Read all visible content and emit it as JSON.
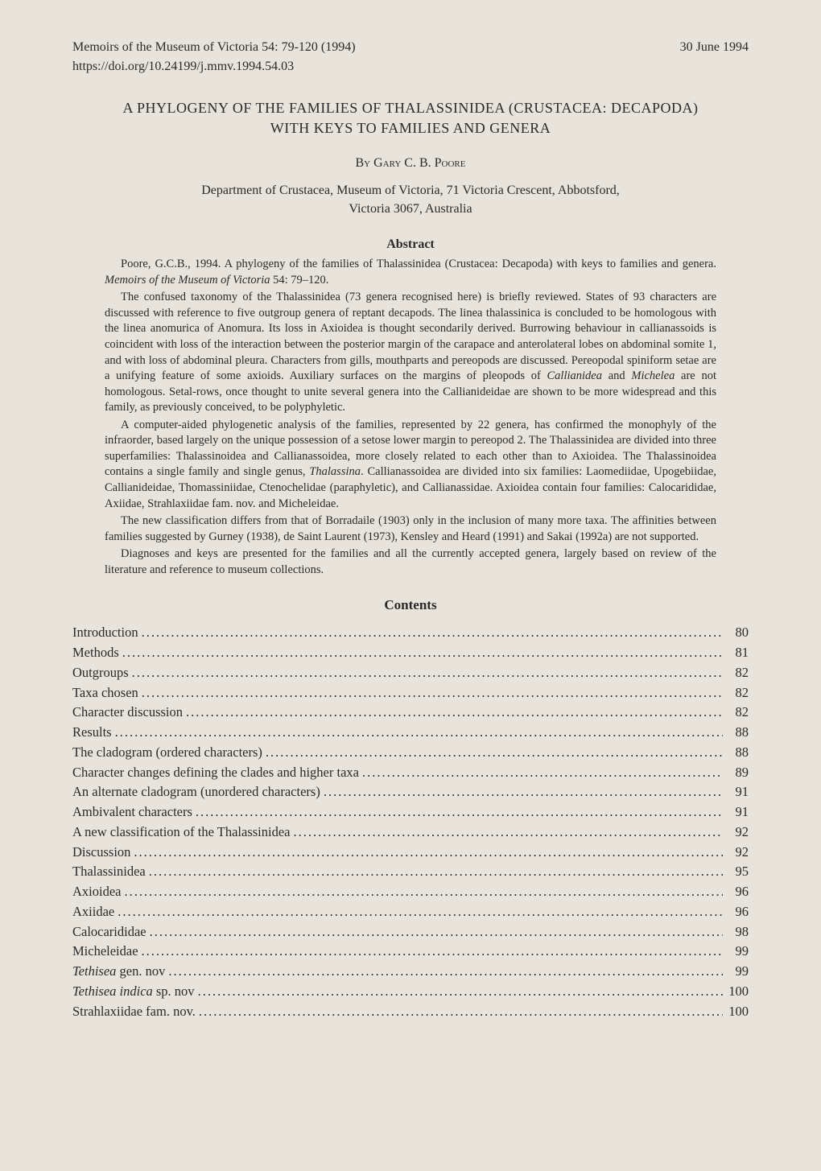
{
  "header": {
    "citation": "Memoirs of the Museum of Victoria 54: 79-120 (1994)",
    "date": "30 June 1994",
    "doi": "https://doi.org/10.24199/j.mmv.1994.54.03"
  },
  "title_line1": "A PHYLOGENY OF THE FAMILIES OF THALASSINIDEA (CRUSTACEA: DECAPODA)",
  "title_line2": "WITH KEYS TO FAMILIES AND GENERA",
  "author_prefix": "By ",
  "author_name": "Gary C. B. Poore",
  "affiliation_line1": "Department of Crustacea, Museum of Victoria, 71 Victoria Crescent, Abbotsford,",
  "affiliation_line2": "Victoria 3067, Australia",
  "abstract_heading": "Abstract",
  "abstract": {
    "p1_a": "Poore, G.C.B., 1994. A phylogeny of the families of Thalassinidea (Crustacea: Decapoda) with keys to families and genera. ",
    "p1_b_italic": "Memoirs of the Museum of Victoria",
    "p1_c": " 54: 79–120.",
    "p2_a": "The confused taxonomy of the Thalassinidea (73 genera recognised here) is briefly reviewed. States of 93 characters are discussed with reference to five outgroup genera of reptant decapods. The linea thalassinica is concluded to be homologous with the linea anomurica of Anomura. Its loss in Axioidea is thought secondarily derived. Burrowing behaviour in callianassoids is coincident with loss of the interaction between the posterior margin of the carapace and anterolateral lobes on abdominal somite 1, and with loss of abdominal pleura. Characters from gills, mouthparts and pereopods are discussed. Pereopodal spiniform setae are a unifying feature of some axioids. Auxiliary surfaces on the margins of pleopods of ",
    "p2_b_italic": "Callianidea",
    "p2_c": " and ",
    "p2_d_italic": "Michelea",
    "p2_e": " are not homologous. Setal-rows, once thought to unite several genera into the Callianideidae are shown to be more widespread and this family, as previously conceived, to be polyphyletic.",
    "p3_a": "A computer-aided phylogenetic analysis of the families, represented by 22 genera, has confirmed the monophyly of the infraorder, based largely on the unique possession of a setose lower margin to pereopod 2. The Thalassinidea are divided into three superfamilies: Thalassinoidea and Callianassoidea, more closely related to each other than to Axioidea. The Thalassinoidea contains a single family and single genus, ",
    "p3_b_italic": "Thalassina",
    "p3_c": ". Callianassoidea are divided into six families: Laomediidae, Upogebiidae, Callianideidae, Thomassiniidae, Ctenochelidae (paraphyletic), and Callianassidae. Axioidea contain four families: Calocarididae, Axiidae, Strahlaxiidae fam. nov. and Micheleidae.",
    "p4": "The new classification differs from that of Borradaile (1903) only in the inclusion of many more taxa. The affinities between families suggested by Gurney (1938), de Saint Laurent (1973), Kensley and Heard (1991) and Sakai (1992a) are not supported.",
    "p5": "Diagnoses and keys are presented for the families and all the currently accepted genera, largely based on review of the literature and reference to museum collections."
  },
  "contents_heading": "Contents",
  "contents": [
    {
      "label": "Introduction",
      "italic": false,
      "page": "80"
    },
    {
      "label": "Methods",
      "italic": false,
      "page": "81"
    },
    {
      "label": "Outgroups",
      "italic": false,
      "page": "82"
    },
    {
      "label": "Taxa chosen",
      "italic": false,
      "page": "82"
    },
    {
      "label": "Character discussion",
      "italic": false,
      "page": "82"
    },
    {
      "label": "Results",
      "italic": false,
      "page": "88"
    },
    {
      "label": "The cladogram (ordered characters)",
      "italic": false,
      "page": "88"
    },
    {
      "label": "Character changes defining the clades and higher taxa",
      "italic": false,
      "page": "89"
    },
    {
      "label": "An alternate cladogram (unordered characters)",
      "italic": false,
      "page": "91"
    },
    {
      "label": "Ambivalent characters",
      "italic": false,
      "page": "91"
    },
    {
      "label": "A new classification of the Thalassinidea",
      "italic": false,
      "page": "92"
    },
    {
      "label": "Discussion",
      "italic": false,
      "page": "92"
    },
    {
      "label": "Thalassinidea",
      "italic": false,
      "page": "95"
    },
    {
      "label": "Axioidea",
      "italic": false,
      "page": "96"
    },
    {
      "label": "Axiidae",
      "italic": false,
      "page": "96"
    },
    {
      "label": "Calocarididae",
      "italic": false,
      "page": "98"
    },
    {
      "label": "Micheleidae",
      "italic": false,
      "page": "99"
    },
    {
      "label_italic": "Tethisea",
      "label_rest": " gen. nov",
      "composite": true,
      "page": "99"
    },
    {
      "label_italic": "Tethisea indica",
      "label_rest": " sp. nov",
      "composite": true,
      "page": "100"
    },
    {
      "label": "Strahlaxiidae fam. nov.",
      "italic": false,
      "page": "100"
    }
  ]
}
